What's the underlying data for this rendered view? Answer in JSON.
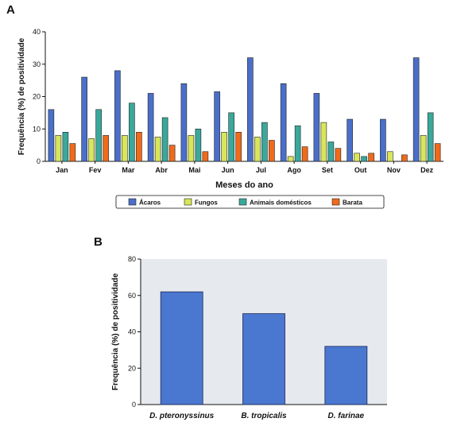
{
  "panel_a_label": "A",
  "panel_b_label": "B",
  "colors": {
    "acaros": "#4a6fc9",
    "fungos": "#d7e65a",
    "animais": "#3aa89a",
    "barata": "#f06a1a",
    "bar_b": "#4a77cf",
    "plot_bg_b": "#e6e9ee"
  },
  "chart_data": [
    {
      "type": "bar",
      "xlabel": "Meses do ano",
      "ylabel": "Frequência (%) de positividade",
      "ylim": [
        0,
        40
      ],
      "yticks": [
        "0",
        "10",
        "20",
        "30",
        "40"
      ],
      "legend_placement": "bottom",
      "categories": [
        "Jan",
        "Fev",
        "Mar",
        "Abr",
        "Mai",
        "Jun",
        "Jul",
        "Ago",
        "Set",
        "Out",
        "Nov",
        "Dez"
      ],
      "series": [
        {
          "name": "Ácaros",
          "values": [
            16,
            26,
            28,
            21,
            24,
            21.5,
            32,
            24,
            21,
            13,
            13,
            32
          ]
        },
        {
          "name": "Fungos",
          "values": [
            8,
            7,
            8,
            7.5,
            8,
            9,
            7.5,
            1.5,
            12,
            2.5,
            3,
            8
          ]
        },
        {
          "name": "Animais domésticos",
          "values": [
            9,
            16,
            18,
            13.5,
            10,
            15,
            12,
            11,
            6,
            1.5,
            0,
            15
          ]
        },
        {
          "name": "Barata",
          "values": [
            5.5,
            8,
            9,
            5,
            3,
            9,
            6.5,
            4.5,
            4,
            2.5,
            2,
            5.5
          ]
        }
      ]
    },
    {
      "type": "bar",
      "xlabel": "",
      "ylabel": "Frequência (%) de positividade",
      "ylim": [
        0,
        80
      ],
      "yticks": [
        "0",
        "20",
        "40",
        "60",
        "80"
      ],
      "categories": [
        "D. pteronyssinus",
        "B. tropicalis",
        "D. farinae"
      ],
      "values": [
        62,
        50,
        32
      ]
    }
  ]
}
